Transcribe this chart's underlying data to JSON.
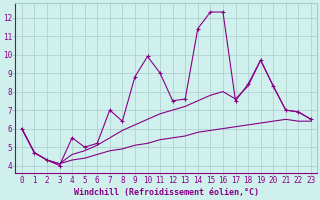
{
  "xlabel": "Windchill (Refroidissement éolien,°C)",
  "bg_color": "#cff0ec",
  "line_color": "#880088",
  "grid_color": "#aacccc",
  "x_hours": [
    0,
    1,
    2,
    3,
    4,
    5,
    6,
    7,
    8,
    9,
    10,
    11,
    12,
    13,
    14,
    15,
    16,
    17,
    18,
    19,
    20,
    21,
    22,
    23
  ],
  "line_main": [
    6.0,
    4.7,
    4.3,
    4.0,
    5.5,
    5.0,
    5.2,
    7.0,
    6.4,
    8.8,
    9.9,
    9.0,
    7.5,
    7.6,
    11.4,
    12.3,
    12.3,
    7.5,
    8.4,
    9.7,
    8.3,
    7.0,
    6.9,
    6.5
  ],
  "line_lower": [
    6.0,
    4.7,
    4.3,
    4.1,
    4.3,
    4.4,
    4.6,
    4.8,
    4.9,
    5.1,
    5.2,
    5.4,
    5.5,
    5.6,
    5.8,
    5.9,
    6.0,
    6.1,
    6.2,
    6.3,
    6.4,
    6.5,
    6.4,
    6.4
  ],
  "line_upper": [
    6.0,
    4.7,
    4.3,
    4.1,
    4.6,
    4.8,
    5.1,
    5.5,
    5.9,
    6.2,
    6.5,
    6.8,
    7.0,
    7.2,
    7.5,
    7.8,
    8.0,
    7.6,
    8.3,
    9.7,
    8.3,
    7.0,
    6.9,
    6.5
  ],
  "ylim": [
    3.6,
    12.8
  ],
  "xlim": [
    -0.5,
    23.5
  ],
  "fontsize_tick": 5.5,
  "fontsize_label": 6.0
}
